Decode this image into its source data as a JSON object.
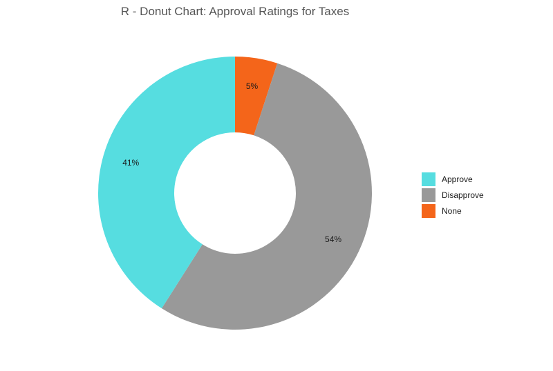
{
  "chart_data": {
    "type": "pie",
    "title": "R - Donut Chart: Approval Ratings for Taxes",
    "categories": [
      "Approve",
      "Disapprove",
      "None"
    ],
    "values": [
      41,
      54,
      5
    ],
    "labels": [
      "41%",
      "54%",
      "5%"
    ],
    "colors": [
      "#56DDE0",
      "#999999",
      "#F4651A"
    ],
    "legend_position": "right",
    "donut": true
  }
}
